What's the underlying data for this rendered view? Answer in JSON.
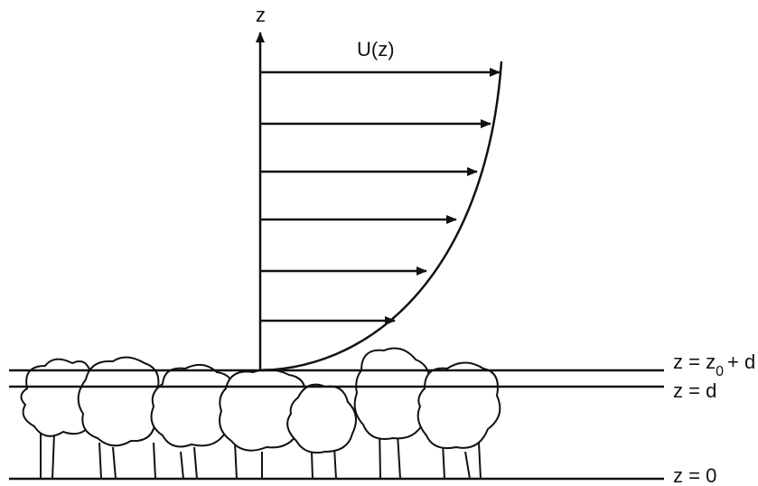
{
  "labels": {
    "axis": "z",
    "profile": "U(z)",
    "top": {
      "main": "z = z",
      "sub": "0",
      "tail": "+ d"
    },
    "middle": "z = d",
    "ground": "z = 0"
  }
}
